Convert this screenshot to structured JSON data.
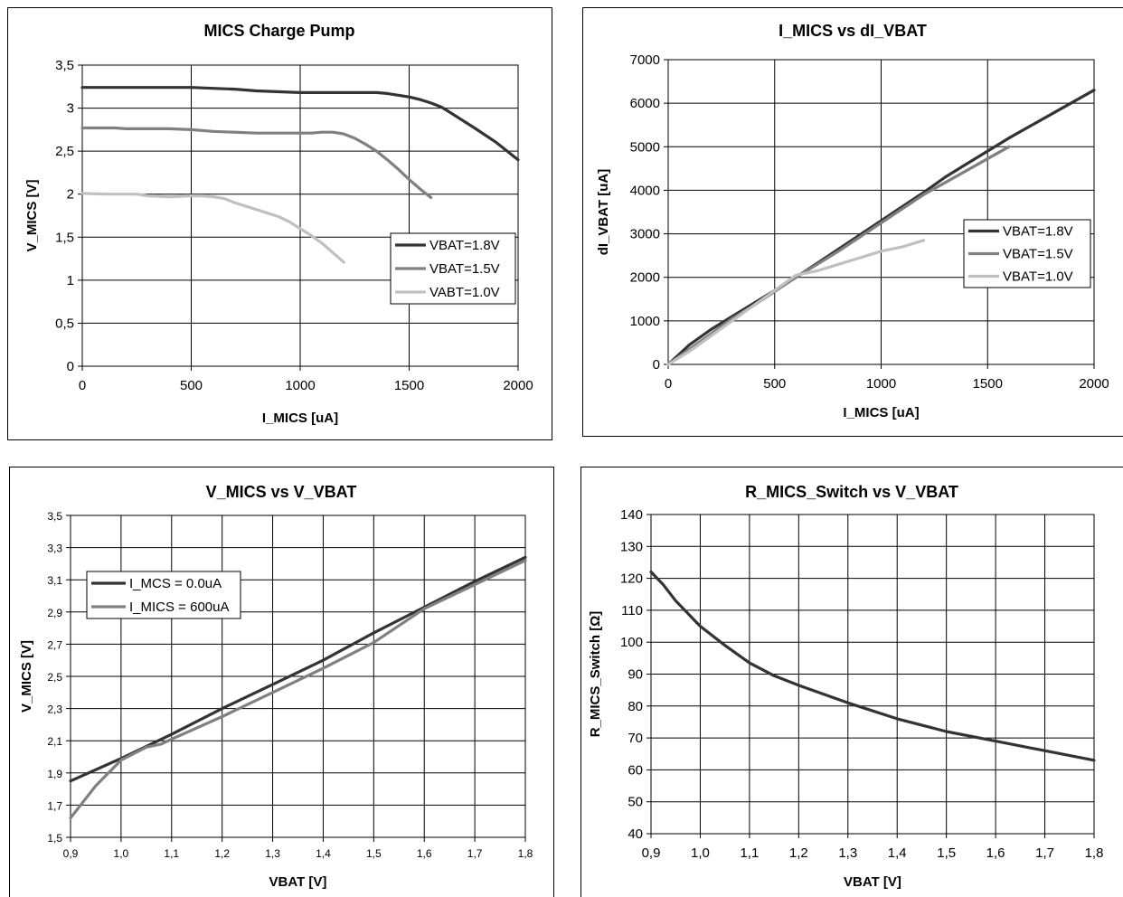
{
  "colors": {
    "dark": "#333333",
    "mid": "#808080",
    "light": "#c0c0c0",
    "grid": "#000000"
  },
  "chart_data": [
    {
      "type": "line",
      "title": "MICS Charge Pump",
      "xlabel": "I_MICS [uA]",
      "ylabel": "V_MICS [V]",
      "xlim": [
        0,
        2000
      ],
      "ylim": [
        0,
        3.5
      ],
      "xticks": [
        "0",
        "500",
        "1000",
        "1500",
        "2000"
      ],
      "yticks": [
        "0",
        "0,5",
        "1",
        "1,5",
        "2",
        "2,5",
        "3",
        "3,5"
      ],
      "grid": true,
      "legend_position": "right",
      "series": [
        {
          "name": "VBAT=1.8V",
          "color": "dark",
          "x": [
            0,
            200,
            400,
            500,
            600,
            700,
            800,
            1000,
            1200,
            1350,
            1400,
            1450,
            1500,
            1550,
            1600,
            1650,
            1700,
            1800,
            1900,
            2000
          ],
          "y": [
            3.24,
            3.24,
            3.24,
            3.24,
            3.23,
            3.22,
            3.2,
            3.18,
            3.18,
            3.18,
            3.17,
            3.15,
            3.13,
            3.1,
            3.06,
            3.01,
            2.93,
            2.77,
            2.6,
            2.4
          ]
        },
        {
          "name": "VBAT=1.5V",
          "color": "mid",
          "x": [
            0,
            150,
            200,
            400,
            500,
            600,
            800,
            1000,
            1050,
            1100,
            1150,
            1200,
            1250,
            1300,
            1350,
            1400,
            1450,
            1500,
            1550,
            1600
          ],
          "y": [
            2.77,
            2.77,
            2.76,
            2.76,
            2.75,
            2.73,
            2.71,
            2.71,
            2.71,
            2.72,
            2.72,
            2.7,
            2.65,
            2.58,
            2.5,
            2.4,
            2.29,
            2.17,
            2.06,
            1.96
          ]
        },
        {
          "name": "VABT=1.0V",
          "color": "light",
          "x": [
            0,
            100,
            250,
            300,
            400,
            500,
            550,
            600,
            650,
            700,
            800,
            900,
            950,
            1000,
            1050,
            1100,
            1150,
            1200
          ],
          "y": [
            2.01,
            2.0,
            2.0,
            1.98,
            1.97,
            1.98,
            1.98,
            1.97,
            1.95,
            1.9,
            1.82,
            1.74,
            1.68,
            1.6,
            1.52,
            1.43,
            1.32,
            1.21
          ]
        }
      ]
    },
    {
      "type": "line",
      "title": "I_MICS vs dI_VBAT",
      "xlabel": "I_MICS [uA]",
      "ylabel": "dI_VBAT [uA]",
      "xlim": [
        0,
        2000
      ],
      "ylim": [
        0,
        7000
      ],
      "xticks": [
        "0",
        "500",
        "1000",
        "1500",
        "2000"
      ],
      "yticks": [
        "0",
        "1000",
        "2000",
        "3000",
        "4000",
        "5000",
        "6000",
        "7000"
      ],
      "grid": true,
      "legend_position": "right",
      "series": [
        {
          "name": "VBAT=1.8V",
          "color": "dark",
          "x": [
            0,
            100,
            200,
            300,
            400,
            600,
            800,
            1000,
            1200,
            1300,
            1400,
            1600,
            1800,
            2000
          ],
          "y": [
            0,
            450,
            800,
            1100,
            1400,
            2000,
            2650,
            3300,
            3950,
            4300,
            4600,
            5200,
            5750,
            6300
          ]
        },
        {
          "name": "VBAT=1.5V",
          "color": "mid",
          "x": [
            0,
            100,
            200,
            300,
            400,
            600,
            800,
            1000,
            1200,
            1400,
            1600
          ],
          "y": [
            0,
            350,
            700,
            1050,
            1350,
            2000,
            2600,
            3250,
            3900,
            4450,
            5000
          ]
        },
        {
          "name": "VBAT=1.0V",
          "color": "light",
          "x": [
            0,
            100,
            200,
            300,
            400,
            500,
            600,
            700,
            800,
            900,
            1000,
            1100,
            1200
          ],
          "y": [
            0,
            300,
            650,
            1000,
            1350,
            1700,
            2050,
            2150,
            2300,
            2450,
            2600,
            2700,
            2850
          ]
        }
      ]
    },
    {
      "type": "line",
      "title": "V_MICS vs V_VBAT",
      "xlabel": "VBAT [V]",
      "ylabel": "V_MICS [V]",
      "xlim": [
        0.9,
        1.8
      ],
      "ylim": [
        1.5,
        3.5
      ],
      "xticks": [
        "0,9",
        "1,0",
        "1,1",
        "1,2",
        "1,3",
        "1,4",
        "1,5",
        "1,6",
        "1,7",
        "1,8"
      ],
      "yticks": [
        "1,5",
        "1,7",
        "1,9",
        "2,1",
        "2,3",
        "2,5",
        "2,7",
        "2,9",
        "3,1",
        "3,3",
        "3,5"
      ],
      "grid": true,
      "legend_position": "top-left",
      "series": [
        {
          "name": "I_MCS = 0.0uA",
          "color": "dark",
          "x": [
            0.9,
            1.0,
            1.1,
            1.2,
            1.3,
            1.4,
            1.5,
            1.6,
            1.7,
            1.8
          ],
          "y": [
            1.85,
            1.99,
            2.14,
            2.3,
            2.45,
            2.6,
            2.77,
            2.93,
            3.09,
            3.24
          ]
        },
        {
          "name": "I_MICS = 600uA",
          "color": "mid",
          "x": [
            0.9,
            0.95,
            1.0,
            1.05,
            1.08,
            1.1,
            1.2,
            1.3,
            1.4,
            1.5,
            1.6,
            1.7,
            1.8
          ],
          "y": [
            1.62,
            1.82,
            1.98,
            2.06,
            2.08,
            2.11,
            2.25,
            2.4,
            2.55,
            2.71,
            2.92,
            3.07,
            3.22
          ]
        }
      ]
    },
    {
      "type": "line",
      "title": "R_MICS_Switch vs V_VBAT",
      "xlabel": "VBAT [V]",
      "ylabel": "R_MICS_Switch [Ω]",
      "xlim": [
        0.9,
        1.8
      ],
      "ylim": [
        40,
        140
      ],
      "xticks": [
        "0,9",
        "1,0",
        "1,1",
        "1,2",
        "1,3",
        "1,4",
        "1,5",
        "1,6",
        "1,7",
        "1,8"
      ],
      "yticks": [
        "40",
        "50",
        "60",
        "70",
        "80",
        "90",
        "100",
        "110",
        "120",
        "130",
        "140"
      ],
      "grid": true,
      "legend_position": "none",
      "series": [
        {
          "name": "",
          "color": "dark",
          "x": [
            0.9,
            0.925,
            0.95,
            1.0,
            1.05,
            1.1,
            1.15,
            1.2,
            1.3,
            1.4,
            1.5,
            1.6,
            1.7,
            1.8
          ],
          "y": [
            122,
            118,
            113,
            105,
            99,
            93.5,
            89.5,
            86.5,
            81,
            76,
            72,
            69,
            66,
            63
          ]
        }
      ]
    }
  ]
}
